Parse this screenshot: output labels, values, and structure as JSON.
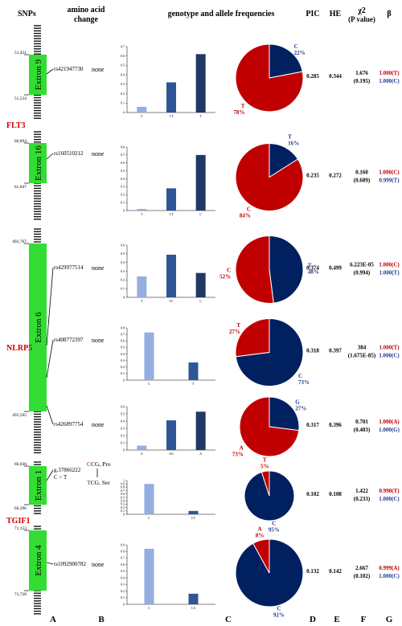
{
  "headers": {
    "snps": "SNPs",
    "aa_change_line1": "amino acid",
    "aa_change_line2": "change",
    "genotype": "genotype and allele frequencies",
    "pic": "PIC",
    "he": "HE",
    "chi_line1": "χ2",
    "chi_line2": "(P value)",
    "beta": "β"
  },
  "panel_labels": [
    "A",
    "B",
    "C",
    "D",
    "E",
    "F",
    "G"
  ],
  "genes": [
    {
      "name": "FLT3",
      "color": "#d40000"
    },
    {
      "name": "NLRP5",
      "color": "#d40000"
    },
    {
      "name": "TGIF1",
      "color": "#d40000"
    }
  ],
  "exons": [
    {
      "label": "Extron 9",
      "start": "51,431",
      "end": "51,534"
    },
    {
      "label": "Extron 16",
      "start": "60,894",
      "end": "61,047"
    },
    {
      "label": "Extron 6",
      "start": "492,767",
      "end": "493,595"
    },
    {
      "label": "Extron 1",
      "start": "66,036",
      "end": "66,296"
    },
    {
      "label": "Extron 4",
      "start": "71,153",
      "end": "71,728"
    }
  ],
  "aa_special": {
    "top": "CCG, Pro",
    "bottom": "TCG, Ser",
    "top_first": "C",
    "top_rest": "CG, Pro",
    "bottom_first": "T",
    "bottom_rest": "CG, Ser"
  },
  "colors": {
    "light": "#93aee0",
    "mid": "#2f5597",
    "dark": "#1f3864",
    "pie_red": "#c00000",
    "pie_blue": "#002060",
    "exon": "#33dd33",
    "red_text": "#c00000",
    "blue_text": "#1f3b8c"
  },
  "snps": [
    {
      "id": "rs421947730",
      "aa": "none",
      "genotypes": [
        {
          "label": "C",
          "value": 0.06
        },
        {
          "label": "CT",
          "value": 0.32
        },
        {
          "label": "T",
          "value": 0.62
        }
      ],
      "ymax": 0.7,
      "yticks": [
        "0",
        "0.1",
        "0.2",
        "0.3",
        "0.4",
        "0.5",
        "0.6",
        "0.7"
      ],
      "pie": {
        "red_allele": "T",
        "red_pct": "78%",
        "red_value": 78,
        "blue_allele": "C",
        "blue_pct": "22%",
        "blue_value": 22
      },
      "pic": "0.285",
      "he": "0.344",
      "chi": "1.676",
      "p": "(0.195)",
      "beta1": "1.000(T)",
      "beta2": "1.000(C)"
    },
    {
      "id": "rs160510212",
      "aa": "none",
      "genotypes": [
        {
          "label": "T",
          "value": 0.02
        },
        {
          "label": "CT",
          "value": 0.28
        },
        {
          "label": "C",
          "value": 0.7
        }
      ],
      "ymax": 0.8,
      "yticks": [
        "0",
        "0.1",
        "0.2",
        "0.3",
        "0.4",
        "0.5",
        "0.6",
        "0.7",
        "0.8"
      ],
      "pie": {
        "red_allele": "C",
        "red_pct": "84%",
        "red_value": 84,
        "blue_allele": "T",
        "blue_pct": "16%",
        "blue_value": 16
      },
      "pic": "0.235",
      "he": "0.272",
      "chi": "0.160",
      "p": "(0.689)",
      "beta1": "1.000(C)",
      "beta2": "0.999(T)"
    },
    {
      "id": "rs429977514",
      "aa": "none",
      "genotypes": [
        {
          "label": "T",
          "value": 0.24
        },
        {
          "label": "TC",
          "value": 0.49
        },
        {
          "label": "C",
          "value": 0.28
        }
      ],
      "ymax": 0.6,
      "yticks": [
        "0",
        "0.1",
        "0.2",
        "0.3",
        "0.4",
        "0.5",
        "0.6"
      ],
      "pie": {
        "red_allele": "C",
        "red_pct": "52%",
        "red_value": 52,
        "blue_allele": "T",
        "blue_pct": "48%",
        "blue_value": 48
      },
      "pic": "0.374",
      "he": "0.499",
      "chi": "6.223E-05",
      "p": "(0.994)",
      "beta1": "1.000(C)",
      "beta2": "1.000(T)"
    },
    {
      "id": "rs408772397",
      "aa": "none",
      "genotypes": [
        {
          "label": "C",
          "value": 0.73
        },
        {
          "label": "T",
          "value": 0.27
        }
      ],
      "ymax": 0.8,
      "yticks": [
        "0",
        "0.1",
        "0.2",
        "0.3",
        "0.4",
        "0.5",
        "0.6",
        "0.7",
        "0.8"
      ],
      "pie": {
        "red_allele": "T",
        "red_pct": "27%",
        "red_value": 27,
        "blue_allele": "C",
        "blue_pct": "73%",
        "blue_value": 73
      },
      "pic": "0.318",
      "he": "0.397",
      "chi": "384",
      "p": "(1.675E-85)",
      "beta1": "1.000(T)",
      "beta2": "1.000(C)"
    },
    {
      "id": "rs426897754",
      "aa": "none",
      "genotypes": [
        {
          "label": "G",
          "value": 0.06
        },
        {
          "label": "AG",
          "value": 0.41
        },
        {
          "label": "A",
          "value": 0.53
        }
      ],
      "ymax": 0.6,
      "yticks": [
        "0",
        "0.1",
        "0.2",
        "0.3",
        "0.4",
        "0.5",
        "0.6"
      ],
      "pie": {
        "red_allele": "A",
        "red_pct": "73%",
        "red_value": 73,
        "blue_allele": "G",
        "blue_pct": "27%",
        "blue_value": 27
      },
      "pic": "0.317",
      "he": "0.396",
      "chi": "0.701",
      "p": "(0.403)",
      "beta1": "1.000(A)",
      "beta2": "1.000(G)"
    },
    {
      "id": "g.37866222",
      "id2": "C > T",
      "aa": "",
      "genotypes": [
        {
          "label": "C",
          "value": 0.9
        },
        {
          "label": "CT",
          "value": 0.1
        }
      ],
      "ymax": 1.0,
      "yticks": [
        "0",
        "0.1",
        "0.2",
        "0.3",
        "0.4",
        "0.5",
        "0.6",
        "0.7",
        "0.8",
        "0.9",
        "1"
      ],
      "pie": {
        "red_allele": "T",
        "red_pct": "5%",
        "red_value": 5,
        "blue_allele": "C",
        "blue_pct": "95%",
        "blue_value": 95
      },
      "pic": "0.102",
      "he": "0.108",
      "chi": "1.422",
      "p": "(0.233)",
      "beta1": "0.998(T)",
      "beta2": "1.000(C)"
    },
    {
      "id": "rs1092900782",
      "aa": "none",
      "genotypes": [
        {
          "label": "C",
          "value": 0.84
        },
        {
          "label": "CA",
          "value": 0.16
        }
      ],
      "ymax": 0.9,
      "yticks": [
        "0",
        "0.1",
        "0.2",
        "0.3",
        "0.4",
        "0.5",
        "0.6",
        "0.7",
        "0.8",
        "0.9"
      ],
      "pie": {
        "red_allele": "A",
        "red_pct": "8%",
        "red_value": 8,
        "blue_allele": "C",
        "blue_pct": "92%",
        "blue_value": 92
      },
      "pic": "0.132",
      "he": "0.142",
      "chi": "2.667",
      "p": "(0.102)",
      "beta1": "0.999(A)",
      "beta2": "1.000(C)"
    }
  ]
}
